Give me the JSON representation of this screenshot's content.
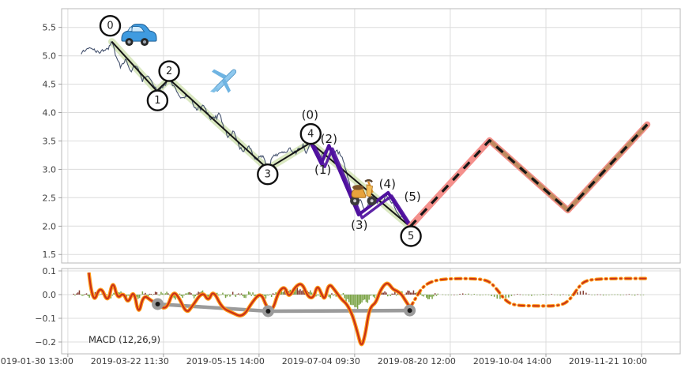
{
  "figure": {
    "kind": "financial chart with Elliott wave annotations and MACD sub-panel",
    "background": "#ffffff",
    "grid_color": "#dcdcdc",
    "spine_color": "#b9b9b9",
    "tick_label_color": "#3c3c3c"
  },
  "macd_panel_label": "MACD (12,26,9)",
  "chart_data": [
    {
      "id": "price_panel",
      "type": "line",
      "title": "",
      "xlabel": "",
      "ylabel": "",
      "xlim": [
        -0.065,
        6.405
      ],
      "ylim": [
        1.35,
        5.83
      ],
      "yticks": [
        5.5,
        5.0,
        4.5,
        4.0,
        3.5,
        3.0,
        2.5,
        2.0,
        1.5
      ],
      "xtick_positions": [
        0,
        1,
        2,
        3,
        4,
        5,
        6
      ],
      "xtick_labels": [
        "2019-01-30 13:00",
        "2019-03-22 11:30",
        "2019-05-15 14:00",
        "2019-07-04 09:30",
        "2019-08-20 12:00",
        "2019-10-04 14:00",
        "2019-11-21 10:00"
      ],
      "grid": true,
      "series": {
        "price_history": {
          "name": "price",
          "color": "#46536f",
          "width": 1.1,
          "noise_amp": 0.33,
          "anchors": [
            [
              0.14,
              5.02
            ],
            [
              0.2,
              5.1
            ],
            [
              0.25,
              5.18
            ],
            [
              0.3,
              5.04
            ],
            [
              0.36,
              5.1
            ],
            [
              0.42,
              5.12
            ],
            [
              0.46,
              5.28
            ],
            [
              0.5,
              5.0
            ],
            [
              0.55,
              4.8
            ],
            [
              0.6,
              4.92
            ],
            [
              0.66,
              4.75
            ],
            [
              0.72,
              4.85
            ],
            [
              0.78,
              4.56
            ],
            [
              0.84,
              4.66
            ],
            [
              0.89,
              4.5
            ],
            [
              0.93,
              4.38
            ],
            [
              1.0,
              4.48
            ],
            [
              1.06,
              4.58
            ],
            [
              1.12,
              4.4
            ],
            [
              1.2,
              4.25
            ],
            [
              1.26,
              4.32
            ],
            [
              1.34,
              4.05
            ],
            [
              1.42,
              4.15
            ],
            [
              1.5,
              3.88
            ],
            [
              1.58,
              3.97
            ],
            [
              1.67,
              3.58
            ],
            [
              1.74,
              3.68
            ],
            [
              1.82,
              3.32
            ],
            [
              1.9,
              3.4
            ],
            [
              1.97,
              3.16
            ],
            [
              2.04,
              3.24
            ],
            [
              2.09,
              3.0
            ],
            [
              2.15,
              3.22
            ],
            [
              2.22,
              3.28
            ],
            [
              2.3,
              3.36
            ],
            [
              2.38,
              3.32
            ],
            [
              2.45,
              3.38
            ],
            [
              2.5,
              3.3
            ],
            [
              2.54,
              3.47
            ],
            [
              2.58,
              3.3
            ],
            [
              2.63,
              3.15
            ],
            [
              2.68,
              3.3
            ],
            [
              2.73,
              3.42
            ],
            [
              2.78,
              3.28
            ],
            [
              2.83,
              3.35
            ],
            [
              2.88,
              3.18
            ],
            [
              2.93,
              2.85
            ],
            [
              2.98,
              2.5
            ],
            [
              3.02,
              2.32
            ],
            [
              3.06,
              2.45
            ],
            [
              3.1,
              2.25
            ],
            [
              3.15,
              2.38
            ],
            [
              3.22,
              2.5
            ],
            [
              3.28,
              2.38
            ],
            [
              3.33,
              2.52
            ],
            [
              3.38,
              2.45
            ],
            [
              3.45,
              2.25
            ],
            [
              3.52,
              2.12
            ],
            [
              3.58,
              2.0
            ]
          ]
        },
        "impulse_wave": {
          "name": "impulse wave 0-5",
          "line_color": "#141414",
          "glow_color": "rgba(193,216,151,0.6)",
          "points": [
            [
              0.46,
              5.25
            ],
            [
              0.93,
              4.38
            ],
            [
              1.06,
              4.59
            ],
            [
              2.09,
              3.01
            ],
            [
              2.54,
              3.47
            ],
            [
              3.58,
              1.99
            ]
          ],
          "labels": [
            "0",
            "1",
            "2",
            "3",
            "4",
            "5"
          ],
          "label_offsets": [
            [
              -2,
              -20
            ],
            [
              1,
              12
            ],
            [
              0,
              -10
            ],
            [
              0,
              7
            ],
            [
              0,
              -11
            ],
            [
              1,
              12
            ]
          ]
        },
        "sub_wave": {
          "name": "sub wave (0)-(5)",
          "color": "#4f109e",
          "points": [
            [
              2.54,
              3.47
            ],
            [
              2.65,
              3.1
            ],
            [
              2.73,
              3.42
            ],
            [
              3.04,
              2.2
            ],
            [
              3.35,
              2.59
            ],
            [
              3.58,
              1.99
            ]
          ],
          "labels": [
            "(0)",
            "(1)",
            "(2)",
            "(3)",
            "(4)",
            "(5)"
          ],
          "label_offsets": [
            [
              -1,
              -35
            ],
            [
              2,
              8
            ],
            [
              0,
              -8
            ],
            [
              1,
              13
            ],
            [
              -1,
              -11
            ],
            [
              3,
              -38
            ]
          ]
        },
        "forecast": {
          "name": "projected path",
          "base_color": "#f4908c",
          "overlay_color": "#bf8a5e",
          "dash_color": "#161616",
          "points": [
            [
              3.58,
              1.99
            ],
            [
              4.41,
              3.51
            ],
            [
              5.23,
              2.28
            ],
            [
              6.06,
              3.79
            ]
          ]
        }
      },
      "emojis": [
        {
          "name": "car-emoji",
          "t": 0.712,
          "v": 5.37
        },
        {
          "name": "airplane-emoji",
          "t": 1.596,
          "v": 4.58
        },
        {
          "name": "scooter-emoji",
          "t": 3.084,
          "v": 2.66
        }
      ]
    },
    {
      "id": "macd_panel",
      "type": "line",
      "label": "MACD (12,26,9)",
      "ylim": [
        -0.25,
        0.11
      ],
      "yticks": [
        0.1,
        0.0,
        -0.1,
        -0.2
      ],
      "grid": true,
      "series": {
        "macd_solid": {
          "name": "MACD line",
          "outer_color": "#ff9b18",
          "inner_color": "#c93118",
          "points": [
            [
              0.22,
              0.093
            ],
            [
              0.26,
              -0.05
            ],
            [
              0.34,
              0.043
            ],
            [
              0.42,
              -0.04
            ],
            [
              0.47,
              0.065
            ],
            [
              0.52,
              -0.02
            ],
            [
              0.58,
              0.01
            ],
            [
              0.63,
              -0.04
            ],
            [
              0.69,
              0.023
            ],
            [
              0.74,
              -0.09
            ],
            [
              0.79,
              0.0
            ],
            [
              0.87,
              -0.025
            ],
            [
              0.94,
              -0.04
            ],
            [
              1.03,
              -0.065
            ],
            [
              1.1,
              0.015
            ],
            [
              1.16,
              -0.01
            ],
            [
              1.24,
              -0.08
            ],
            [
              1.3,
              -0.05
            ],
            [
              1.41,
              0.015
            ],
            [
              1.47,
              -0.03
            ],
            [
              1.52,
              0.02
            ],
            [
              1.61,
              -0.055
            ],
            [
              1.71,
              -0.075
            ],
            [
              1.83,
              -0.097
            ],
            [
              1.93,
              -0.03
            ],
            [
              2.02,
              0.01
            ],
            [
              2.08,
              -0.055
            ],
            [
              2.14,
              -0.07
            ],
            [
              2.2,
              0.01
            ],
            [
              2.27,
              0.037
            ],
            [
              2.31,
              -0.015
            ],
            [
              2.38,
              0.035
            ],
            [
              2.45,
              0.05
            ],
            [
              2.51,
              -0.01
            ],
            [
              2.57,
              -0.015
            ],
            [
              2.61,
              0.043
            ],
            [
              2.66,
              -0.005
            ],
            [
              2.69,
              -0.02
            ],
            [
              2.73,
              0.05
            ],
            [
              2.8,
              0.015
            ],
            [
              2.86,
              -0.02
            ],
            [
              2.92,
              -0.04
            ],
            [
              2.98,
              -0.09
            ],
            [
              3.03,
              -0.16
            ],
            [
              3.07,
              -0.225
            ],
            [
              3.11,
              -0.17
            ],
            [
              3.14,
              -0.09
            ],
            [
              3.17,
              -0.05
            ],
            [
              3.22,
              -0.035
            ],
            [
              3.26,
              0.01
            ],
            [
              3.31,
              0.043
            ],
            [
              3.35,
              0.05
            ],
            [
              3.4,
              0.022
            ],
            [
              3.44,
              0.016
            ],
            [
              3.49,
              0.002
            ],
            [
              3.53,
              -0.025
            ],
            [
              3.58,
              -0.055
            ]
          ]
        },
        "macd_forecast": {
          "name": "MACD projection (dash-dot)",
          "points": [
            [
              3.58,
              -0.055
            ],
            [
              3.63,
              -0.02
            ],
            [
              3.71,
              0.033
            ],
            [
              3.81,
              0.057
            ],
            [
              3.96,
              0.067
            ],
            [
              4.21,
              0.068
            ],
            [
              4.39,
              0.062
            ],
            [
              4.48,
              0.027
            ],
            [
              4.57,
              -0.023
            ],
            [
              4.66,
              -0.045
            ],
            [
              4.86,
              -0.048
            ],
            [
              5.15,
              -0.048
            ],
            [
              5.25,
              -0.023
            ],
            [
              5.35,
              0.037
            ],
            [
              5.42,
              0.06
            ],
            [
              5.56,
              0.066
            ],
            [
              5.76,
              0.068
            ],
            [
              6.05,
              0.068
            ]
          ]
        },
        "divergence": {
          "name": "divergence line on pivots 1-3-5",
          "color": "#9b9b9b",
          "dot_center_color": "#1a1a1a",
          "points": [
            [
              0.94,
              -0.04
            ],
            [
              2.095,
              -0.07
            ],
            [
              3.576,
              -0.067
            ]
          ]
        },
        "histogram": {
          "green_color": "#6f9b35",
          "red_color": "#7c2d21",
          "solid": {
            "t0": 0.06,
            "t1": 3.88,
            "step": 0.015,
            "amp": 0.014,
            "bias": [
              [
                2.18,
                2.55,
                0.022
              ],
              [
                2.88,
                3.18,
                -0.055
              ]
            ]
          },
          "dotted": {
            "t0": 3.92,
            "t1": 6.05,
            "step": 0.03,
            "amp": 0.004,
            "bias": [
              [
                4.4,
                4.66,
                -0.018
              ],
              [
                5.28,
                5.46,
                0.015
              ]
            ]
          }
        }
      }
    }
  ]
}
